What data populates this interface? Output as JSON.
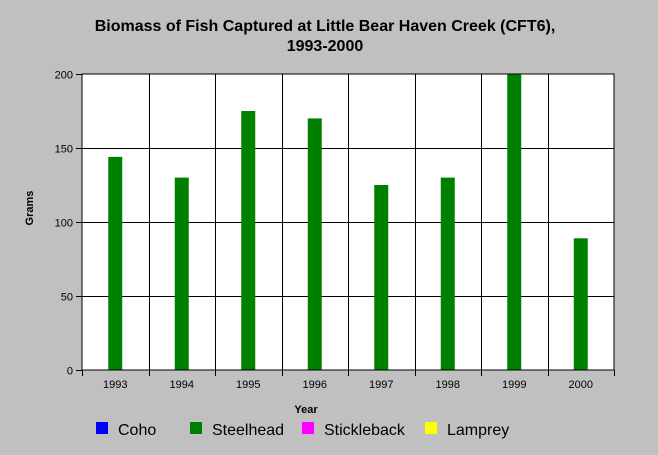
{
  "chart_data": {
    "type": "bar",
    "title_line1": "Biomass of Fish Captured at Little Bear Haven Creek (CFT6),",
    "title_line2": "1993-2000",
    "xlabel": "Year",
    "ylabel": "Grams",
    "ylim": [
      0,
      200
    ],
    "yticks": [
      "0",
      "50",
      "100",
      "150",
      "200"
    ],
    "categories": [
      "1993",
      "1994",
      "1995",
      "1996",
      "1997",
      "1998",
      "1999",
      "2000"
    ],
    "series": [
      {
        "name": "Coho",
        "color": "#0000ff",
        "values": [
          0,
          0,
          0,
          0,
          0,
          0,
          0,
          0
        ]
      },
      {
        "name": "Steelhead",
        "color": "#008000",
        "values": [
          144,
          130,
          175,
          170,
          125,
          130,
          200,
          89
        ]
      },
      {
        "name": "Stickleback",
        "color": "#ff00ff",
        "values": [
          0,
          0,
          0,
          0,
          0,
          0,
          0,
          0
        ]
      },
      {
        "name": "Lamprey",
        "color": "#ffff00",
        "values": [
          0,
          0,
          0,
          0,
          0,
          0,
          0,
          0
        ]
      }
    ],
    "grid": true,
    "legend_position": "bottom"
  }
}
